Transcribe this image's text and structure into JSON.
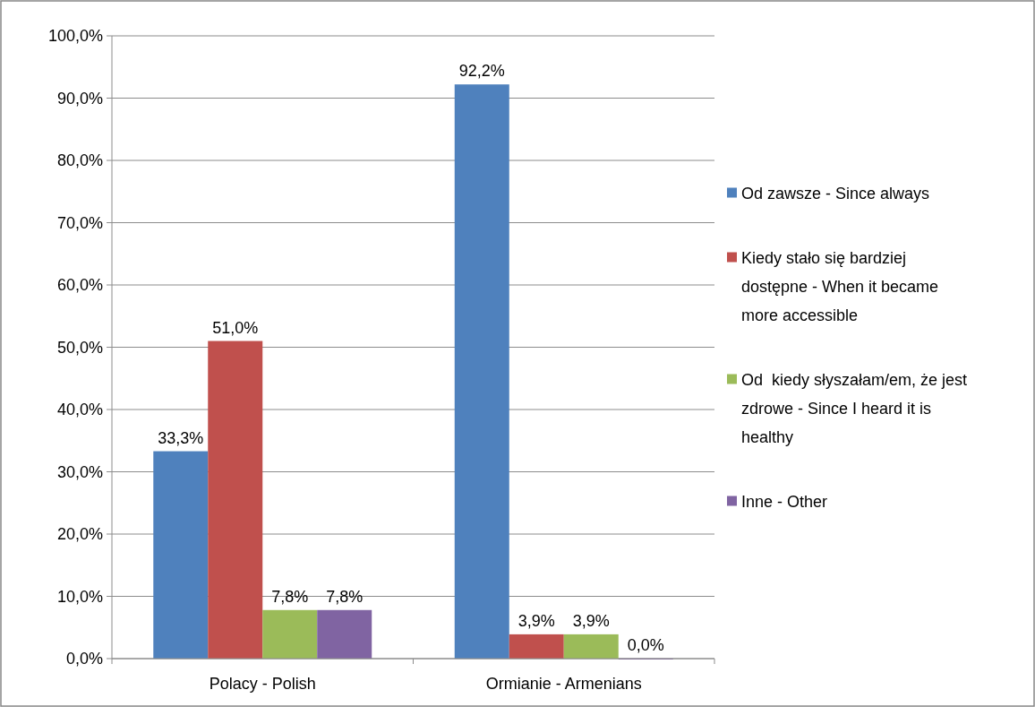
{
  "chart_data": {
    "type": "bar",
    "categories": [
      "Polacy - Polish",
      "Ormianie - Armenians"
    ],
    "series": [
      {
        "name": "Od zawsze - Since always",
        "color": "#4f81bd",
        "values": [
          33.3,
          92.2
        ],
        "value_labels": [
          "33,3%",
          "92,2%"
        ]
      },
      {
        "name": "Kiedy stało się bardziej dostępne - When it became more accessible",
        "color": "#c0504d",
        "values": [
          51.0,
          3.9
        ],
        "value_labels": [
          "51,0%",
          "3,9%"
        ]
      },
      {
        "name": "Od  kiedy słyszałam/em, że jest zdrowe - Since I heard it is healthy",
        "color": "#9bbb59",
        "values": [
          7.8,
          3.9
        ],
        "value_labels": [
          "7,8%",
          "3,9%"
        ]
      },
      {
        "name": "Inne - Other",
        "color": "#8064a2",
        "values": [
          7.8,
          0.0
        ],
        "value_labels": [
          "7,8%",
          "0,0%"
        ]
      }
    ],
    "ylim": [
      0,
      100
    ],
    "yticks": [
      {
        "value": 0,
        "label": "0,0%"
      },
      {
        "value": 10,
        "label": "10,0%"
      },
      {
        "value": 20,
        "label": "20,0%"
      },
      {
        "value": 30,
        "label": "30,0%"
      },
      {
        "value": 40,
        "label": "40,0%"
      },
      {
        "value": 50,
        "label": "50,0%"
      },
      {
        "value": 60,
        "label": "60,0%"
      },
      {
        "value": 70,
        "label": "70,0%"
      },
      {
        "value": 80,
        "label": "80,0%"
      },
      {
        "value": 90,
        "label": "90,0%"
      },
      {
        "value": 100,
        "label": "100,0%"
      }
    ],
    "grid": "y",
    "legend": "right"
  }
}
